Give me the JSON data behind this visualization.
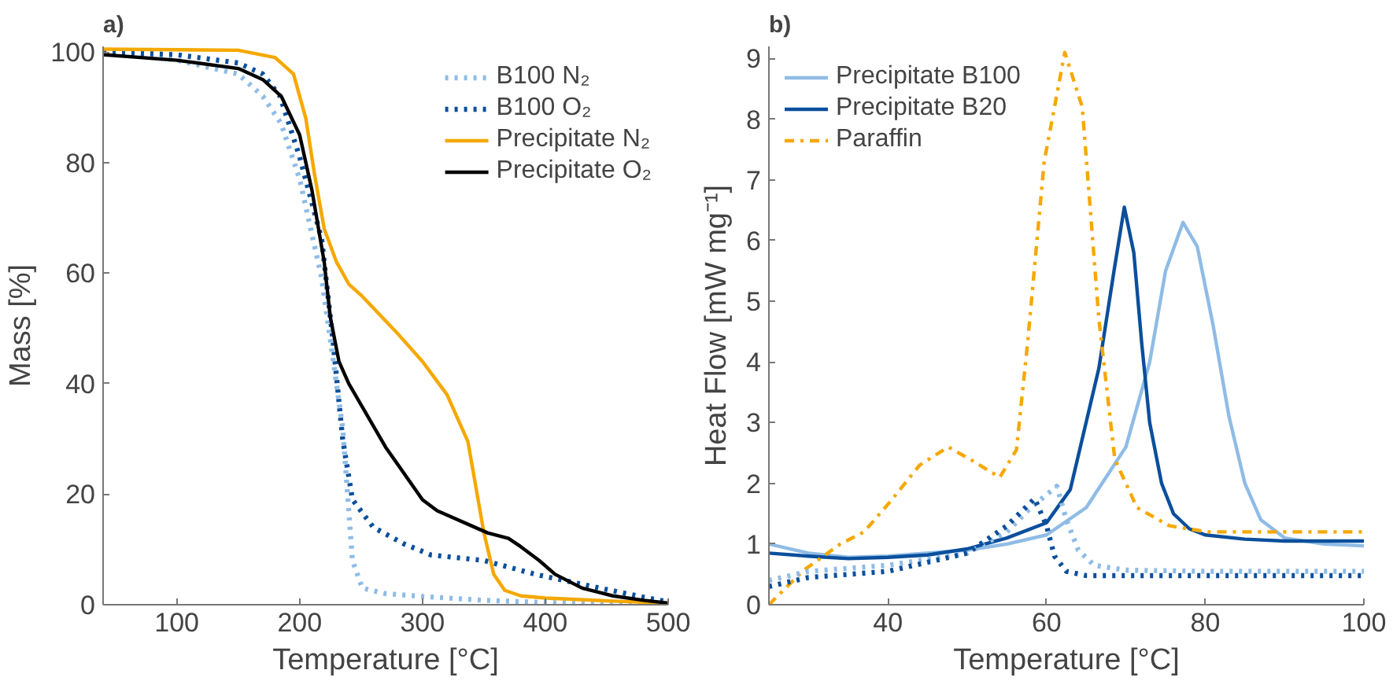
{
  "chart_data": [
    {
      "type": "line",
      "title": "a)",
      "xlabel": "Temperature [°C]",
      "ylabel": "Mass [%]",
      "xlim": [
        40,
        500
      ],
      "ylim": [
        0,
        101
      ],
      "xticks": [
        100,
        200,
        300,
        400,
        500
      ],
      "yticks": [
        0,
        20,
        40,
        60,
        80,
        100
      ],
      "grid": false,
      "legend": "top right",
      "series": [
        {
          "name": "B100 N₂",
          "color": "#8fbce6",
          "line_style": "dotted",
          "x": [
            40,
            100,
            150,
            170,
            185,
            200,
            218,
            235,
            243,
            251,
            270,
            300,
            350,
            400,
            500
          ],
          "values": [
            100,
            98.5,
            96,
            92,
            87,
            77,
            59,
            32,
            8,
            3,
            2,
            1.5,
            0.8,
            0.4,
            0
          ]
        },
        {
          "name": "B100 O₂",
          "color": "#0b4f9c",
          "line_style": "dotted",
          "x": [
            40,
            100,
            150,
            170,
            184,
            200,
            218,
            227,
            235,
            243,
            260,
            285,
            307,
            350,
            392,
            434,
            477,
            500
          ],
          "values": [
            100,
            99.5,
            98,
            96,
            92,
            81,
            66,
            48,
            30,
            19,
            14,
            11,
            9,
            8,
            5.5,
            3.5,
            1.5,
            0.5
          ]
        },
        {
          "name": "Precipitate N₂",
          "color": "#f5a800",
          "line_style": "solid",
          "x": [
            40,
            150,
            180,
            195,
            205,
            212,
            220,
            230,
            240,
            250,
            280,
            300,
            320,
            337,
            350,
            358,
            367,
            380,
            400,
            450,
            500
          ],
          "values": [
            100.5,
            100.3,
            99,
            96,
            88,
            78,
            68,
            62,
            58,
            56,
            49,
            44,
            38,
            29.5,
            13,
            5.5,
            2.6,
            1.6,
            1.2,
            0.7,
            0.3
          ]
        },
        {
          "name": "Precipitate O₂",
          "color": "#000000",
          "line_style": "solid",
          "x": [
            40,
            100,
            150,
            170,
            185,
            200,
            210,
            220,
            225,
            232,
            240,
            270,
            300,
            312,
            353,
            370,
            380,
            395,
            408,
            430,
            455,
            480,
            500
          ],
          "values": [
            99.5,
            98.5,
            97,
            95,
            92,
            85,
            75,
            62,
            52,
            44,
            40,
            28.5,
            19,
            17,
            13,
            12,
            10.5,
            8,
            5.5,
            3,
            1.6,
            0.8,
            0.3
          ]
        }
      ]
    },
    {
      "type": "line",
      "title": "b)",
      "xlabel": "Temperature [°C]",
      "ylabel": "Heat Flow [mW mg⁻¹]",
      "xlim": [
        25,
        100
      ],
      "ylim": [
        0,
        9.2
      ],
      "xticks": [
        40,
        60,
        80,
        100
      ],
      "yticks": [
        0,
        1,
        2,
        3,
        4,
        5,
        6,
        7,
        8,
        9
      ],
      "grid": false,
      "legend": "top left",
      "series": [
        {
          "name": "Precipitate B100",
          "color": "#8fbce6",
          "line_style": "solid",
          "x": [
            25,
            30,
            35,
            40,
            50,
            55,
            60,
            65,
            70,
            73,
            75,
            77.2,
            79,
            81,
            83,
            85,
            87,
            90,
            95,
            100
          ],
          "values": [
            1.0,
            0.85,
            0.78,
            0.8,
            0.9,
            1.0,
            1.15,
            1.6,
            2.6,
            4.0,
            5.5,
            6.3,
            5.9,
            4.6,
            3.1,
            2.0,
            1.4,
            1.1,
            1.0,
            0.97
          ]
        },
        {
          "name": "Precipitate B20",
          "color": "#0b4f9c",
          "line_style": "solid",
          "x": [
            25,
            30,
            35,
            40,
            45,
            50,
            55,
            60,
            63,
            66.6,
            68.5,
            69.8,
            71,
            72,
            73,
            74.5,
            76,
            78,
            80,
            85,
            90,
            100
          ],
          "values": [
            0.85,
            0.8,
            0.76,
            0.78,
            0.82,
            0.92,
            1.1,
            1.35,
            1.9,
            3.9,
            5.5,
            6.55,
            5.8,
            4.3,
            3.0,
            2.0,
            1.5,
            1.25,
            1.15,
            1.08,
            1.05,
            1.05
          ]
        },
        {
          "name": "Paraffin",
          "color": "#f5a800",
          "line_style": "dashdot",
          "x": [
            25,
            29.3,
            34,
            37,
            40.3,
            44,
            47.6,
            50.7,
            54.1,
            56.2,
            57.6,
            59.7,
            62.3,
            64.5,
            66.6,
            68.6,
            71.4,
            75.5,
            80.3,
            100
          ],
          "values": [
            0,
            0.56,
            1.0,
            1.2,
            1.7,
            2.3,
            2.6,
            2.37,
            2.1,
            2.55,
            4.3,
            7.3,
            9.1,
            8.2,
            4.7,
            2.4,
            1.6,
            1.3,
            1.2,
            1.2
          ]
        },
        {
          "color": "#8fbce6",
          "line_style": "dotted",
          "x": [
            25,
            30,
            40,
            50,
            55,
            58,
            61.3,
            62.5,
            64,
            66,
            70,
            80,
            100
          ],
          "values": [
            0.4,
            0.55,
            0.65,
            0.85,
            1.2,
            1.6,
            1.95,
            1.4,
            0.9,
            0.65,
            0.57,
            0.55,
            0.55
          ]
        },
        {
          "color": "#0b4f9c",
          "line_style": "dotted",
          "x": [
            25,
            30,
            40,
            50,
            55,
            58.5,
            60,
            61,
            62.5,
            65,
            80,
            100
          ],
          "values": [
            0.3,
            0.45,
            0.55,
            0.85,
            1.3,
            1.75,
            1.3,
            0.8,
            0.55,
            0.48,
            0.48,
            0.48
          ]
        }
      ]
    }
  ]
}
